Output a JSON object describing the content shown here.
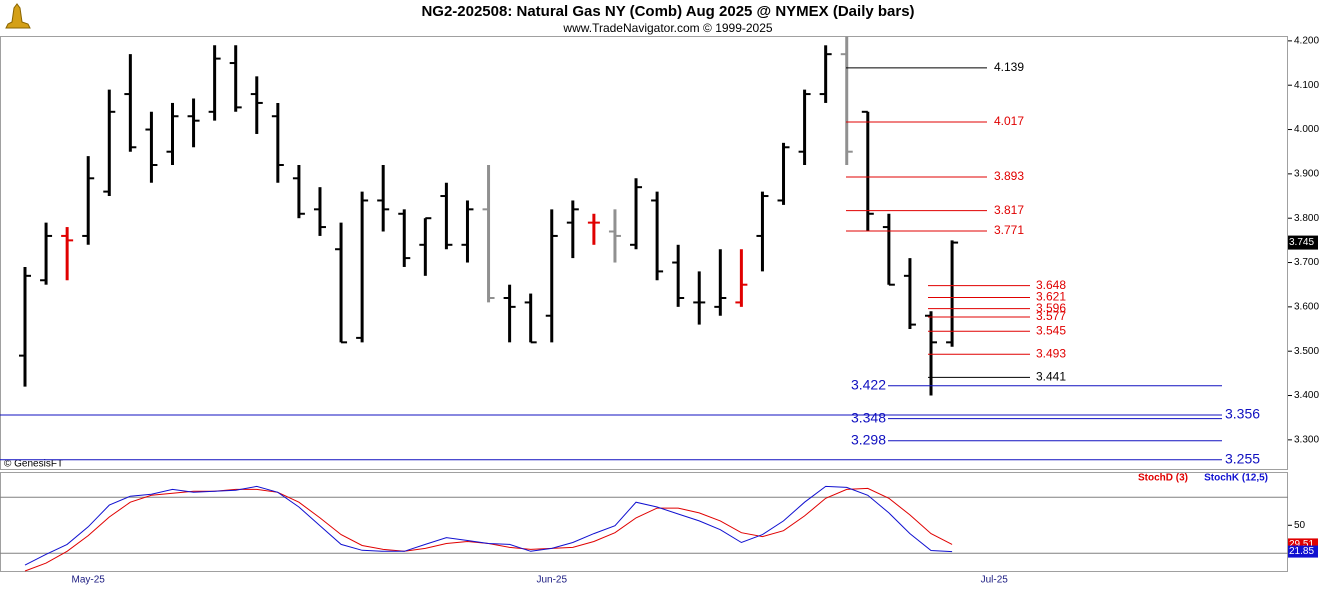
{
  "chart_data": [
    {
      "type": "ohlc",
      "title": "NG2-202508:  Natural Gas NY (Comb) Aug 2025 @ NYMEX  (Daily bars)",
      "subtitle": "www.TradeNavigator.com © 1999-2025",
      "watermark": "© GenesisFT",
      "categories": [
        null,
        null,
        null,
        "May-25",
        null,
        null,
        null,
        null,
        null,
        null,
        null,
        null,
        null,
        null,
        null,
        null,
        null,
        null,
        null,
        null,
        null,
        null,
        null,
        null,
        null,
        "Jun-25",
        null,
        null,
        null,
        null,
        null,
        null,
        null,
        null,
        null,
        null,
        null,
        null,
        null,
        null,
        null,
        null,
        null,
        null,
        null,
        null,
        "Jul-25"
      ],
      "open": [
        3.49,
        3.66,
        3.76,
        3.76,
        3.86,
        4.08,
        4.0,
        3.95,
        4.03,
        4.04,
        4.15,
        4.08,
        4.03,
        3.89,
        3.82,
        3.73,
        3.53,
        3.84,
        3.81,
        3.74,
        3.85,
        3.74,
        3.82,
        3.62,
        3.61,
        3.58,
        3.79,
        3.79,
        3.77,
        3.74,
        3.84,
        3.7,
        3.61,
        3.6,
        3.61,
        3.76,
        3.84,
        3.95,
        4.08,
        4.17,
        4.04,
        3.78,
        3.67,
        3.58,
        3.52,
        null,
        null
      ],
      "high": [
        3.69,
        3.79,
        3.78,
        3.94,
        4.09,
        4.17,
        4.04,
        4.06,
        4.07,
        4.19,
        4.19,
        4.12,
        4.06,
        3.92,
        3.87,
        3.79,
        3.86,
        3.92,
        3.82,
        3.8,
        3.88,
        3.84,
        3.92,
        3.65,
        3.63,
        3.82,
        3.84,
        3.81,
        3.82,
        3.89,
        3.86,
        3.74,
        3.68,
        3.73,
        3.73,
        3.86,
        3.97,
        4.09,
        4.19,
        4.21,
        4.04,
        3.81,
        3.71,
        3.59,
        3.75,
        null,
        null
      ],
      "low": [
        3.42,
        3.65,
        3.66,
        3.74,
        3.85,
        3.95,
        3.88,
        3.92,
        3.96,
        4.02,
        4.04,
        3.99,
        3.88,
        3.8,
        3.76,
        3.52,
        3.52,
        3.77,
        3.69,
        3.67,
        3.73,
        3.7,
        3.61,
        3.52,
        3.52,
        3.52,
        3.71,
        3.74,
        3.7,
        3.73,
        3.66,
        3.6,
        3.56,
        3.58,
        3.6,
        3.68,
        3.83,
        3.92,
        4.06,
        3.92,
        3.77,
        3.65,
        3.55,
        3.4,
        3.51,
        null,
        null
      ],
      "close": [
        3.67,
        3.76,
        3.75,
        3.89,
        4.04,
        3.96,
        3.92,
        4.03,
        4.02,
        4.16,
        4.05,
        4.06,
        3.92,
        3.81,
        3.78,
        3.52,
        3.84,
        3.82,
        3.71,
        3.8,
        3.74,
        3.82,
        3.62,
        3.6,
        3.52,
        3.76,
        3.82,
        3.79,
        3.76,
        3.87,
        3.68,
        3.62,
        3.61,
        3.62,
        3.65,
        3.85,
        3.96,
        4.08,
        4.17,
        3.95,
        3.81,
        3.65,
        3.56,
        3.52,
        3.745,
        null,
        null
      ],
      "colors": [
        "#000000",
        "#000000",
        "#e00000",
        "#000000",
        "#000000",
        "#000000",
        "#000000",
        "#000000",
        "#000000",
        "#000000",
        "#000000",
        "#000000",
        "#000000",
        "#000000",
        "#000000",
        "#000000",
        "#000000",
        "#000000",
        "#000000",
        "#000000",
        "#000000",
        "#000000",
        "#909090",
        "#000000",
        "#000000",
        "#000000",
        "#000000",
        "#e00000",
        "#909090",
        "#000000",
        "#000000",
        "#000000",
        "#000000",
        "#000000",
        "#e00000",
        "#000000",
        "#000000",
        "#000000",
        "#000000",
        "#909090",
        "#000000",
        "#000000",
        "#000000",
        "#000000",
        "#000000",
        null,
        null
      ],
      "ylim": [
        3.232,
        4.211
      ],
      "yticks": [
        {
          "value": 4.2,
          "label": "4.200"
        },
        {
          "value": 4.1,
          "label": "4.100"
        },
        {
          "value": 4.0,
          "label": "4.000"
        },
        {
          "value": 3.9,
          "label": "3.900"
        },
        {
          "value": 3.8,
          "label": "3.800"
        },
        {
          "value": 3.7,
          "label": "3.700"
        },
        {
          "value": 3.6,
          "label": "3.600"
        },
        {
          "value": 3.5,
          "label": "3.500"
        },
        {
          "value": 3.4,
          "label": "3.400"
        },
        {
          "value": 3.3,
          "label": "3.300"
        }
      ],
      "levels_upper": {
        "values": [
          4.139,
          4.017,
          3.893,
          3.817,
          3.771
        ],
        "colors": [
          "#000000",
          "#e00000",
          "#e00000",
          "#e00000",
          "#e00000"
        ]
      },
      "levels_lower": {
        "values": [
          3.648,
          3.621,
          3.596,
          3.577,
          3.545,
          3.493,
          3.441
        ],
        "colors": [
          "#e00000",
          "#e00000",
          "#e00000",
          "#e00000",
          "#e00000",
          "#e00000",
          "#000000"
        ]
      },
      "levels_left": {
        "values": [
          3.422,
          3.348,
          3.298
        ],
        "colors": [
          "#1010c0",
          "#1010c0",
          "#1010c0"
        ]
      },
      "levels_right": {
        "values": [
          3.356,
          3.255
        ],
        "colors": [
          "#1010c0",
          "#1010c0"
        ]
      }
    },
    {
      "type": "line",
      "series": [
        {
          "name": "StochD (3)",
          "color": "#e00000",
          "values": [
            1.1,
            9.5,
            22.1,
            38.9,
            58.9,
            74.7,
            82.1,
            84.2,
            86.3,
            86.3,
            88.4,
            88.4,
            85.3,
            74.7,
            57.9,
            40,
            28.4,
            24.2,
            22.1,
            25.3,
            30.5,
            32.6,
            30.5,
            26.3,
            24.2,
            25.3,
            26.3,
            32.6,
            42.1,
            57.9,
            68.4,
            68.4,
            63.2,
            54.7,
            42.1,
            37.9,
            44.2,
            60,
            78.9,
            88.4,
            89.5,
            78.9,
            61.1,
            41.1,
            29.51,
            null,
            null
          ]
        },
        {
          "name": "StochK (12,5)",
          "color": "#1010d0",
          "values": [
            7.4,
            18.9,
            29.5,
            48.4,
            71.6,
            81.1,
            83.2,
            88.4,
            85.3,
            86.3,
            87.4,
            91.6,
            85.3,
            69.5,
            49.5,
            29.5,
            23.2,
            22.1,
            22.1,
            29.5,
            36.8,
            33.7,
            30.5,
            29.5,
            22.1,
            25.3,
            31.6,
            41.1,
            49.5,
            74.7,
            69.5,
            62.1,
            54.7,
            45.3,
            31.6,
            40,
            54.7,
            74.7,
            91.6,
            90.5,
            82.1,
            63.2,
            41.1,
            23,
            21.85,
            null,
            null
          ]
        }
      ],
      "ylim": [
        0,
        107
      ],
      "yticks": [
        50
      ],
      "guides": [
        20,
        80
      ]
    }
  ]
}
